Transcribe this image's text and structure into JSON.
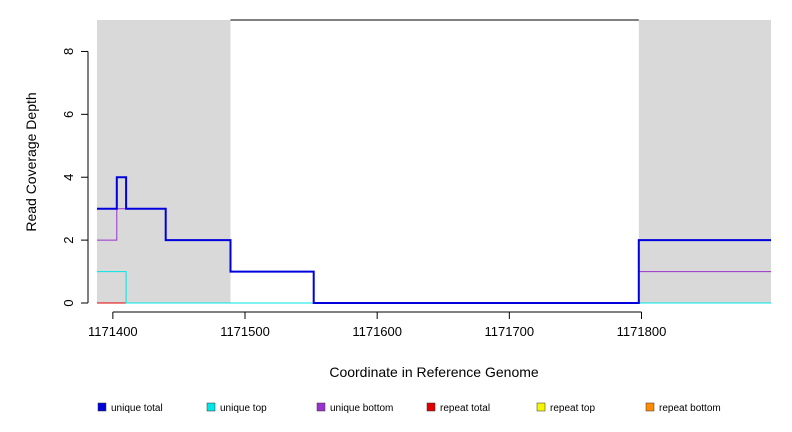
{
  "chart_data": {
    "type": "line",
    "step": true,
    "xlabel": "Coordinate in Reference Genome",
    "ylabel": "Read Coverage Depth",
    "xlim": [
      1171388,
      1171898
    ],
    "ylim": [
      0,
      9
    ],
    "x_ticks": [
      1171400,
      1171500,
      1171600,
      1171700,
      1171800
    ],
    "x_tick_labels": [
      "1171400",
      "1171500",
      "1171600",
      "1171700",
      "1171800"
    ],
    "y_ticks": [
      0,
      2,
      4,
      6,
      8
    ],
    "y_tick_labels": [
      "0",
      "2",
      "4",
      "6",
      "8"
    ],
    "shaded_regions": [
      {
        "x0": 1171388,
        "x1": 1171489,
        "color": "#d9d9d9"
      },
      {
        "x0": 1171798,
        "x1": 1171898,
        "color": "#d9d9d9"
      }
    ],
    "top_bar": {
      "x0": 1171489,
      "x1": 1171798,
      "y": 9,
      "color": "#000000"
    },
    "series": [
      {
        "name": "unique total",
        "color": "#0000dd",
        "width": 2,
        "x": [
          1171388,
          1171400,
          1171401,
          1171402,
          1171403,
          1171404,
          1171405,
          1171406,
          1171407,
          1171408,
          1171409,
          1171410,
          1171411,
          1171420,
          1171430,
          1171439,
          1171440,
          1171450,
          1171460,
          1171470,
          1171480,
          1171488,
          1171489,
          1171500,
          1171510,
          1171520,
          1171530,
          1171540,
          1171551,
          1171552,
          1171600,
          1171700,
          1171797,
          1171798,
          1171898
        ],
        "y": [
          3,
          3,
          3,
          3,
          4,
          4,
          4,
          4,
          4,
          4,
          4,
          3,
          3,
          3,
          3,
          3,
          2,
          2,
          2,
          2,
          2,
          2,
          1,
          1,
          1,
          1,
          1,
          1,
          1,
          0,
          0,
          0,
          0,
          2,
          2
        ]
      },
      {
        "name": "unique top",
        "color": "#00e5e5",
        "width": 1,
        "x": [
          1171388,
          1171400,
          1171409,
          1171410,
          1171500,
          1171552,
          1171898
        ],
        "y": [
          1,
          1,
          1,
          0,
          0,
          0,
          0
        ]
      },
      {
        "name": "unique bottom",
        "color": "#9a32cd",
        "width": 1,
        "x": [
          1171388,
          1171400,
          1171401,
          1171402,
          1171403,
          1171440,
          1171489,
          1171552,
          1171600,
          1171700,
          1171797,
          1171798,
          1171898
        ],
        "y": [
          2,
          2,
          2,
          2,
          3,
          2,
          1,
          0,
          0,
          0,
          0,
          1,
          1
        ]
      },
      {
        "name": "repeat total",
        "color": "#e00000",
        "width": 1,
        "x": [
          1171388,
          1171898
        ],
        "y": [
          0,
          0
        ]
      },
      {
        "name": "repeat top",
        "color": "#f5f500",
        "width": 1,
        "x": [
          1171388,
          1171898
        ],
        "y": [
          0,
          0
        ]
      },
      {
        "name": "repeat bottom",
        "color": "#ff8c00",
        "width": 1,
        "x": [
          1171388,
          1171898
        ],
        "y": [
          0,
          0
        ]
      }
    ],
    "legend": {
      "position": "bottom",
      "entries": [
        "unique total",
        "unique top",
        "unique bottom",
        "repeat total",
        "repeat top",
        "repeat bottom"
      ],
      "colors": [
        "#0000dd",
        "#00e5e5",
        "#9a32cd",
        "#e00000",
        "#f5f500",
        "#ff8c00"
      ]
    }
  }
}
